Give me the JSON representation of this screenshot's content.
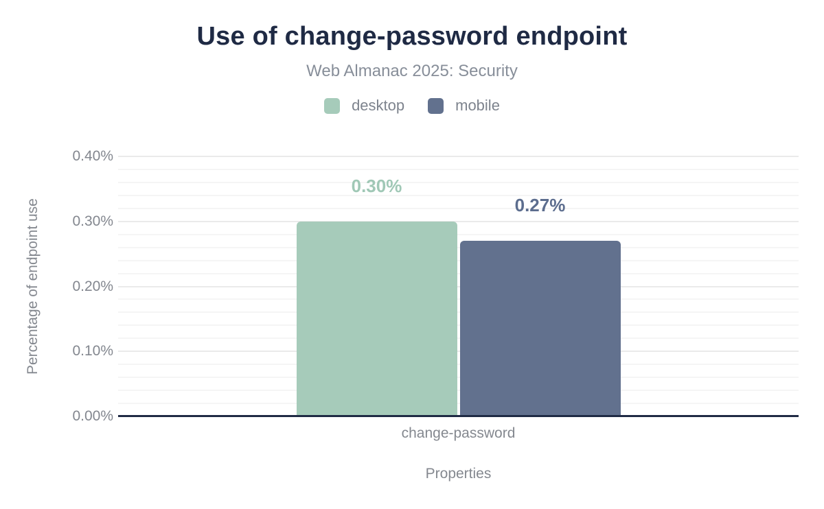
{
  "chart_data": {
    "type": "bar",
    "title": "Use of change-password endpoint",
    "subtitle": "Web Almanac 2025: Security",
    "xlabel": "Properties",
    "ylabel": "Percentage of endpoint use",
    "categories": [
      "change-password"
    ],
    "series": [
      {
        "name": "desktop",
        "values": [
          0.3
        ],
        "value_labels": [
          "0.30%"
        ],
        "color": "#a6cbba",
        "value_label_color": "#a0c8b6"
      },
      {
        "name": "mobile",
        "values": [
          0.27
        ],
        "value_labels": [
          "0.27%"
        ],
        "color": "#62718e",
        "value_label_color": "#5c6d8e"
      }
    ],
    "ylim": [
      0,
      0.4
    ],
    "yticks": [
      "0.40%",
      "0.30%",
      "0.20%",
      "0.10%",
      "0.00%"
    ],
    "minor_grid_steps": 20,
    "major_every": 5,
    "grid": true,
    "legend_position": "top"
  },
  "colors": {
    "title": "#1f2a44",
    "subtitle": "#878e99",
    "axis_line": "#1f2a44",
    "tick_text": "#83878f",
    "gridline_minor": "#f5f5f5",
    "gridline_major": "#eaeaea",
    "background": "#ffffff"
  }
}
